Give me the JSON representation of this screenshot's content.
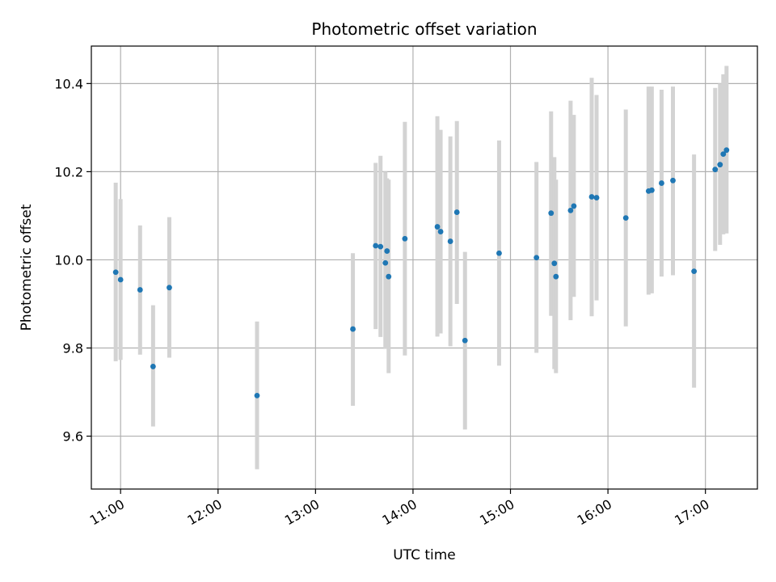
{
  "chart_data": {
    "type": "scatter",
    "title": "Photometric offset variation",
    "xlabel": "UTC time",
    "ylabel": "Photometric offset",
    "grid": true,
    "xlim": [
      "10:42",
      "17:32"
    ],
    "ylim": [
      9.48,
      10.485
    ],
    "x_ticks": [
      "11:00",
      "12:00",
      "13:00",
      "14:00",
      "15:00",
      "16:00",
      "17:00"
    ],
    "y_ticks": [
      9.6,
      9.8,
      10.0,
      10.2,
      10.4
    ],
    "colors": {
      "points": "#1f77b4",
      "error_bars": "#d3d3d3",
      "grid": "#b0b0b0"
    },
    "points": [
      {
        "t": "10:57",
        "y": 9.972,
        "lo": 9.77,
        "hi": 10.175
      },
      {
        "t": "11:00",
        "y": 9.955,
        "lo": 9.773,
        "hi": 10.138
      },
      {
        "t": "11:12",
        "y": 9.932,
        "lo": 9.785,
        "hi": 10.078
      },
      {
        "t": "11:20",
        "y": 9.758,
        "lo": 9.622,
        "hi": 9.897
      },
      {
        "t": "11:30",
        "y": 9.937,
        "lo": 9.778,
        "hi": 10.097
      },
      {
        "t": "12:24",
        "y": 9.692,
        "lo": 9.525,
        "hi": 9.86
      },
      {
        "t": "13:23",
        "y": 9.843,
        "lo": 9.669,
        "hi": 10.015
      },
      {
        "t": "13:37",
        "y": 10.032,
        "lo": 9.843,
        "hi": 10.22
      },
      {
        "t": "13:40",
        "y": 10.03,
        "lo": 9.825,
        "hi": 10.236
      },
      {
        "t": "13:43",
        "y": 9.993,
        "lo": 9.798,
        "hi": 10.2
      },
      {
        "t": "13:44",
        "y": 10.02,
        "lo": 9.855,
        "hi": 10.185
      },
      {
        "t": "13:45",
        "y": 9.962,
        "lo": 9.743,
        "hi": 10.182
      },
      {
        "t": "13:55",
        "y": 10.048,
        "lo": 9.783,
        "hi": 10.313
      },
      {
        "t": "14:15",
        "y": 10.075,
        "lo": 9.826,
        "hi": 10.326
      },
      {
        "t": "14:17",
        "y": 10.064,
        "lo": 9.833,
        "hi": 10.295
      },
      {
        "t": "14:23",
        "y": 10.042,
        "lo": 9.804,
        "hi": 10.28
      },
      {
        "t": "14:27",
        "y": 10.108,
        "lo": 9.9,
        "hi": 10.315
      },
      {
        "t": "14:32",
        "y": 9.817,
        "lo": 9.615,
        "hi": 10.018
      },
      {
        "t": "14:53",
        "y": 10.015,
        "lo": 9.76,
        "hi": 10.271
      },
      {
        "t": "15:16",
        "y": 10.005,
        "lo": 9.789,
        "hi": 10.222
      },
      {
        "t": "15:25",
        "y": 10.106,
        "lo": 9.873,
        "hi": 10.337
      },
      {
        "t": "15:27",
        "y": 9.992,
        "lo": 9.752,
        "hi": 10.233
      },
      {
        "t": "15:28",
        "y": 9.962,
        "lo": 9.743,
        "hi": 10.182
      },
      {
        "t": "15:37",
        "y": 10.112,
        "lo": 9.863,
        "hi": 10.361
      },
      {
        "t": "15:39",
        "y": 10.122,
        "lo": 9.916,
        "hi": 10.329
      },
      {
        "t": "15:50",
        "y": 10.143,
        "lo": 9.872,
        "hi": 10.413
      },
      {
        "t": "15:53",
        "y": 10.141,
        "lo": 9.908,
        "hi": 10.374
      },
      {
        "t": "16:11",
        "y": 10.095,
        "lo": 9.849,
        "hi": 10.341
      },
      {
        "t": "16:25",
        "y": 10.156,
        "lo": 9.921,
        "hi": 10.393
      },
      {
        "t": "16:27",
        "y": 10.158,
        "lo": 9.924,
        "hi": 10.393
      },
      {
        "t": "16:33",
        "y": 10.174,
        "lo": 9.962,
        "hi": 10.386
      },
      {
        "t": "16:40",
        "y": 10.18,
        "lo": 9.965,
        "hi": 10.393
      },
      {
        "t": "16:53",
        "y": 9.974,
        "lo": 9.71,
        "hi": 10.239
      },
      {
        "t": "17:06",
        "y": 10.205,
        "lo": 10.02,
        "hi": 10.39
      },
      {
        "t": "17:09",
        "y": 10.216,
        "lo": 10.034,
        "hi": 10.4
      },
      {
        "t": "17:11",
        "y": 10.24,
        "lo": 10.058,
        "hi": 10.421
      },
      {
        "t": "17:13",
        "y": 10.249,
        "lo": 10.06,
        "hi": 10.44
      }
    ]
  }
}
